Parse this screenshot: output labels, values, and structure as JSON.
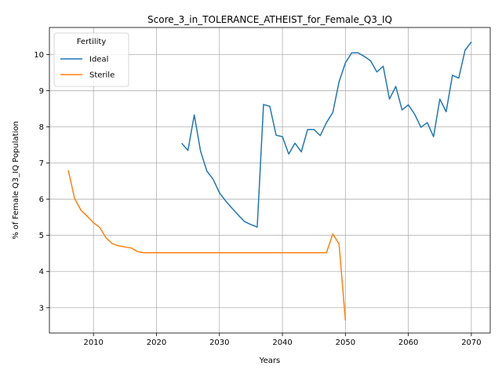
{
  "chart_data": {
    "type": "line",
    "title": "Score_3_in_TOLERANCE_ATHEIST_for_Female_Q3_IQ",
    "xlabel": "Years",
    "ylabel": "% of Female Q3_IQ Population",
    "xlim": [
      2003,
      2073
    ],
    "ylim": [
      2.3,
      10.75
    ],
    "xticks": [
      2010,
      2020,
      2030,
      2040,
      2050,
      2060,
      2070
    ],
    "yticks": [
      3,
      4,
      5,
      6,
      7,
      8,
      9,
      10
    ],
    "grid": true,
    "legend": {
      "title": "Fertility",
      "placement": "upper-left"
    },
    "series": [
      {
        "name": "Ideal",
        "color": "#1f77b4",
        "x": [
          2024,
          2025,
          2026,
          2027,
          2028,
          2029,
          2030,
          2031,
          2032,
          2033,
          2034,
          2035,
          2036,
          2037,
          2038,
          2039,
          2040,
          2041,
          2042,
          2043,
          2044,
          2045,
          2046,
          2047,
          2048,
          2049,
          2050,
          2051,
          2052,
          2053,
          2054,
          2055,
          2056,
          2057,
          2058,
          2059,
          2060,
          2061,
          2062,
          2063,
          2064,
          2065,
          2066,
          2067,
          2068,
          2069,
          2070
        ],
        "y": [
          7.55,
          7.35,
          8.33,
          7.33,
          6.78,
          6.55,
          6.18,
          5.95,
          5.75,
          5.56,
          5.38,
          5.3,
          5.23,
          8.62,
          8.57,
          7.77,
          7.73,
          7.25,
          7.55,
          7.31,
          7.93,
          7.93,
          7.76,
          8.12,
          8.4,
          9.25,
          9.77,
          10.05,
          10.05,
          9.95,
          9.83,
          9.52,
          9.68,
          8.77,
          9.12,
          8.47,
          8.61,
          8.35,
          7.99,
          8.12,
          7.73,
          8.77,
          8.42,
          9.43,
          9.35,
          10.12,
          10.35
        ]
      },
      {
        "name": "Sterile",
        "color": "#ff7f0e",
        "x": [
          2006,
          2007,
          2008,
          2009,
          2010,
          2011,
          2012,
          2013,
          2014,
          2015,
          2016,
          2017,
          2018,
          2019,
          2020,
          2021,
          2022,
          2023,
          2024,
          2025,
          2026,
          2027,
          2028,
          2029,
          2030,
          2031,
          2032,
          2033,
          2034,
          2035,
          2036,
          2037,
          2038,
          2039,
          2040,
          2041,
          2042,
          2043,
          2044,
          2045,
          2046,
          2047,
          2048,
          2049,
          2050
        ],
        "y": [
          6.8,
          6.02,
          5.7,
          5.53,
          5.35,
          5.22,
          4.93,
          4.77,
          4.71,
          4.68,
          4.65,
          4.55,
          4.52,
          4.52,
          4.52,
          4.52,
          4.52,
          4.52,
          4.52,
          4.52,
          4.52,
          4.52,
          4.52,
          4.52,
          4.52,
          4.52,
          4.52,
          4.52,
          4.52,
          4.52,
          4.52,
          4.52,
          4.52,
          4.52,
          4.52,
          4.52,
          4.52,
          4.52,
          4.52,
          4.52,
          4.52,
          4.52,
          5.04,
          4.76,
          2.65
        ]
      }
    ]
  }
}
